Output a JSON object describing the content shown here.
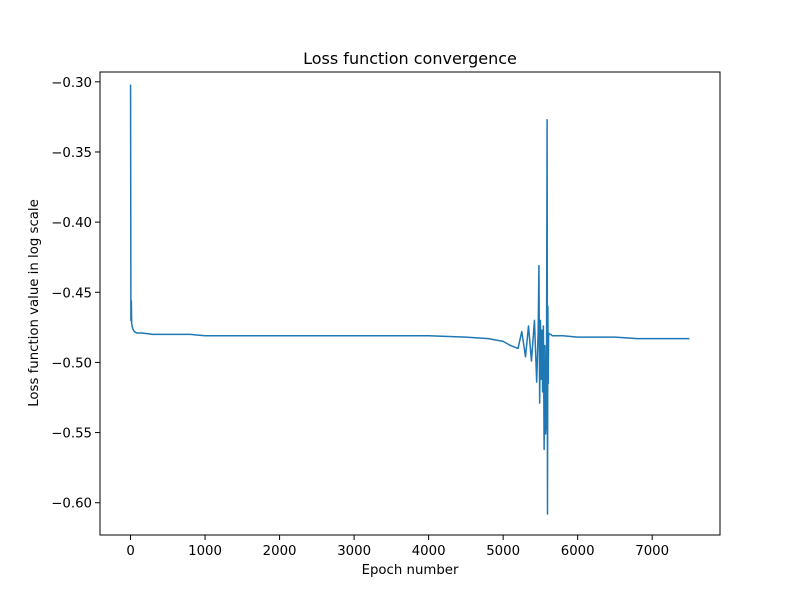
{
  "chart_data": {
    "type": "line",
    "title": "Loss function convergence",
    "xlabel": "Epoch number",
    "ylabel": "Loss function value in log scale",
    "xlim": [
      -410,
      7910
    ],
    "ylim": [
      -0.623,
      -0.293
    ],
    "xticks": [
      0,
      1000,
      2000,
      3000,
      4000,
      5000,
      6000,
      7000
    ],
    "xtick_labels": [
      "0",
      "1000",
      "2000",
      "3000",
      "4000",
      "5000",
      "6000",
      "7000"
    ],
    "yticks": [
      -0.3,
      -0.35,
      -0.4,
      -0.45,
      -0.5,
      -0.55,
      -0.6
    ],
    "ytick_labels": [
      "−0.30",
      "−0.35",
      "−0.40",
      "−0.45",
      "−0.50",
      "−0.55",
      "−0.60"
    ],
    "grid": false,
    "legend": "none",
    "series": [
      {
        "color": "#1f77b4",
        "x": [
          0,
          5,
          10,
          15,
          20,
          30,
          50,
          80,
          150,
          300,
          500,
          800,
          1000,
          1500,
          2000,
          2500,
          3000,
          3500,
          4000,
          4500,
          4800,
          5000,
          5100,
          5200,
          5250,
          5300,
          5340,
          5380,
          5420,
          5450,
          5470,
          5480,
          5490,
          5500,
          5510,
          5520,
          5530,
          5540,
          5550,
          5560,
          5570,
          5580,
          5590,
          5595,
          5600,
          5605,
          5610,
          5620,
          5640,
          5660,
          5700,
          5800,
          6000,
          6200,
          6500,
          6800,
          7000,
          7200,
          7400,
          7500
        ],
        "y": [
          -0.302,
          -0.47,
          -0.456,
          -0.472,
          -0.474,
          -0.476,
          -0.478,
          -0.479,
          -0.479,
          -0.48,
          -0.48,
          -0.48,
          -0.481,
          -0.481,
          -0.481,
          -0.481,
          -0.481,
          -0.481,
          -0.481,
          -0.482,
          -0.483,
          -0.485,
          -0.488,
          -0.49,
          -0.478,
          -0.496,
          -0.474,
          -0.499,
          -0.47,
          -0.514,
          -0.478,
          -0.431,
          -0.529,
          -0.47,
          -0.512,
          -0.477,
          -0.521,
          -0.474,
          -0.562,
          -0.488,
          -0.551,
          -0.54,
          -0.327,
          -0.608,
          -0.46,
          -0.515,
          -0.479,
          -0.48,
          -0.48,
          -0.481,
          -0.481,
          -0.481,
          -0.482,
          -0.482,
          -0.482,
          -0.483,
          -0.483,
          -0.483,
          -0.483,
          -0.483
        ]
      }
    ]
  }
}
